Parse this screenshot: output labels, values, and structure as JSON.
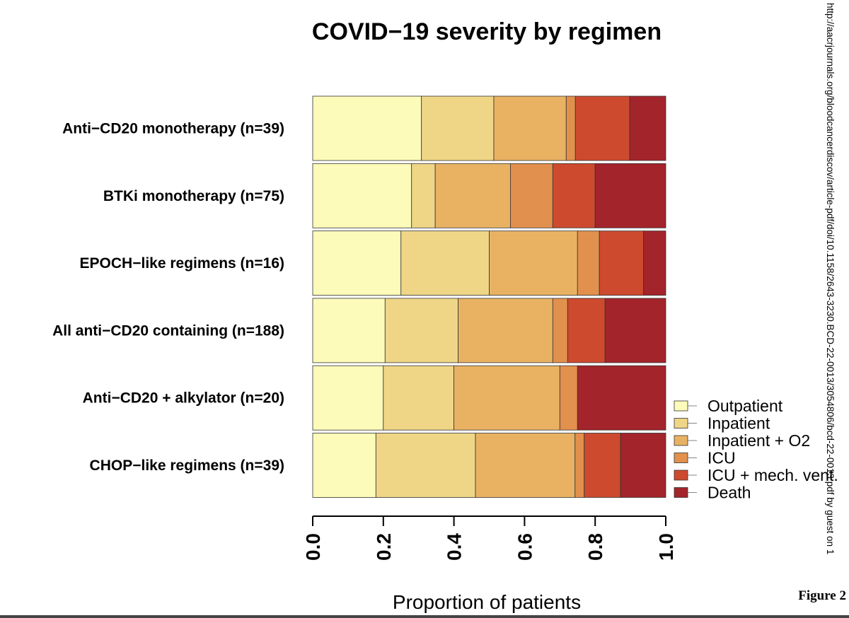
{
  "side_note": "http://aacrjournals.org/bloodcancerdiscov/article-pdf/doi/10.1158/2643-3230.BCD-22-0013/3054806/bcd-22-0013.pdf by guest on 1",
  "figure_label": "Figure 2",
  "chart_data": {
    "type": "bar",
    "orientation": "horizontal",
    "stacked": true,
    "title": "COVID−19 severity by regimen",
    "xlabel": "Proportion of patients",
    "ylabel": "",
    "xlim": [
      0,
      1
    ],
    "xticks": [
      "0.0",
      "0.2",
      "0.4",
      "0.6",
      "0.8",
      "1.0"
    ],
    "grid": false,
    "legend_position": "right",
    "categories": [
      "Anti−CD20 monotherapy (n=39)",
      "BTKi monotherapy (n=75)",
      "EPOCH−like regimens (n=16)",
      "All anti−CD20 containing (n=188)",
      "Anti−CD20 + alkylator (n=20)",
      "CHOP−like regimens (n=39)"
    ],
    "series": [
      {
        "name": "Outpatient",
        "color": "#FCFBB9",
        "values": [
          0.308,
          0.28,
          0.25,
          0.205,
          0.2,
          0.179
        ]
      },
      {
        "name": "Inpatient",
        "color": "#EFD687",
        "values": [
          0.205,
          0.067,
          0.25,
          0.207,
          0.2,
          0.282
        ]
      },
      {
        "name": "Inpatient + O2",
        "color": "#E9B263",
        "values": [
          0.205,
          0.213,
          0.25,
          0.268,
          0.3,
          0.282
        ]
      },
      {
        "name": "ICU",
        "color": "#E2904D",
        "values": [
          0.026,
          0.12,
          0.062,
          0.042,
          0.05,
          0.026
        ]
      },
      {
        "name": "ICU + mech. vent.",
        "color": "#CE4A2F",
        "values": [
          0.154,
          0.12,
          0.125,
          0.106,
          0.0,
          0.103
        ]
      },
      {
        "name": "Death",
        "color": "#A3242A",
        "values": [
          0.102,
          0.2,
          0.063,
          0.172,
          0.25,
          0.128
        ]
      }
    ]
  }
}
